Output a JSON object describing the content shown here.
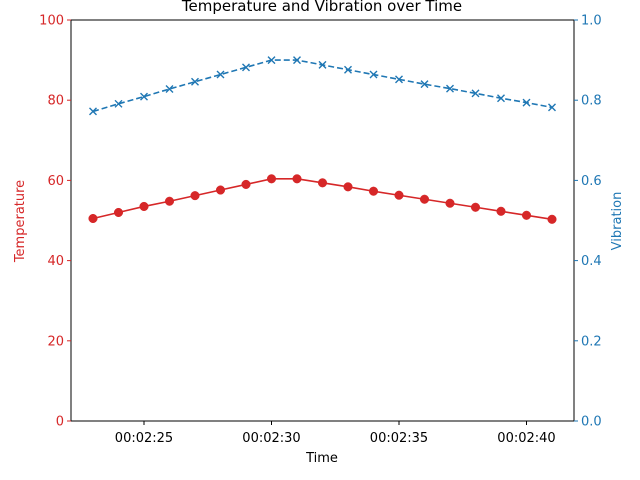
{
  "chart_data": {
    "type": "line",
    "title": "Temperature and Vibration over Time",
    "xlabel": "Time",
    "x": [
      "00:02:23",
      "00:02:24",
      "00:02:25",
      "00:02:26",
      "00:02:27",
      "00:02:28",
      "00:02:29",
      "00:02:30",
      "00:02:31",
      "00:02:32",
      "00:02:33",
      "00:02:34",
      "00:02:35",
      "00:02:36",
      "00:02:37",
      "00:02:38",
      "00:02:39",
      "00:02:40",
      "00:02:41"
    ],
    "x_ticks": [
      "00:02:25",
      "00:02:30",
      "00:02:35",
      "00:02:40"
    ],
    "grid": false,
    "left_axis": {
      "label": "Temperature",
      "ylim": [
        0,
        100
      ],
      "ticks": [
        "0",
        "20",
        "40",
        "60",
        "80",
        "100"
      ],
      "color": "#d62728"
    },
    "right_axis": {
      "label": "Vibration",
      "ylim": [
        0,
        1.0
      ],
      "ticks": [
        "0.0",
        "0.2",
        "0.4",
        "0.6",
        "0.8",
        "1.0"
      ],
      "color": "#1f77b4"
    },
    "series": [
      {
        "axis": "left",
        "color": "#d62728",
        "marker": "circle",
        "linestyle": "solid",
        "values": [
          50.5,
          52.0,
          53.5,
          54.8,
          56.2,
          57.6,
          59.0,
          60.4,
          60.4,
          59.4,
          58.4,
          57.3,
          56.3,
          55.3,
          54.3,
          53.3,
          52.3,
          51.3,
          50.3
        ]
      },
      {
        "axis": "right",
        "color": "#1f77b4",
        "marker": "x",
        "linestyle": "dashed",
        "values": [
          0.772,
          0.791,
          0.809,
          0.828,
          0.846,
          0.864,
          0.882,
          0.9,
          0.9,
          0.888,
          0.876,
          0.864,
          0.852,
          0.84,
          0.829,
          0.817,
          0.805,
          0.794,
          0.782
        ]
      }
    ]
  }
}
